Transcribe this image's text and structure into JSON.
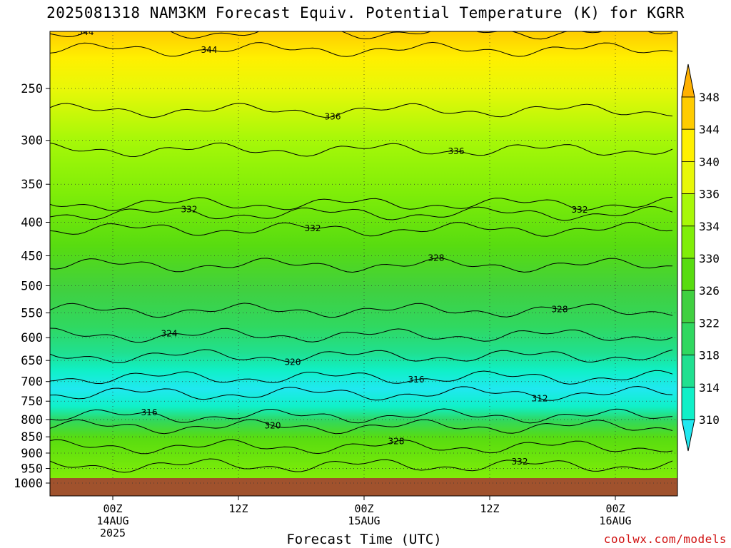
{
  "title": "2025081318 NAM3KM Forecast Equiv. Potential Temperature (K) for KGRR",
  "credit": "coolwx.com/models",
  "chart_data": {
    "type": "contour-time-height",
    "xlabel": "Forecast Time (UTC)",
    "ylabel": "",
    "x_ticks": [
      {
        "label": "00Z",
        "date": "14AUG",
        "year": "2025"
      },
      {
        "label": "12Z",
        "date": "",
        "year": ""
      },
      {
        "label": "00Z",
        "date": "15AUG",
        "year": ""
      },
      {
        "label": "12Z",
        "date": "",
        "year": ""
      },
      {
        "label": "00Z",
        "date": "16AUG",
        "year": ""
      }
    ],
    "y_ticks": [
      "250",
      "300",
      "350",
      "400",
      "450",
      "500",
      "550",
      "600",
      "650",
      "700",
      "750",
      "800",
      "850",
      "900",
      "950",
      "1000"
    ],
    "y_log_scale": true,
    "ylim": [
      200,
      1000
    ],
    "grid": true,
    "colorbar_labels": [
      "310",
      "314",
      "318",
      "322",
      "326",
      "330",
      "334",
      "336",
      "340",
      "344",
      "348"
    ],
    "colorbar_colors": [
      "#20e8f0",
      "#10f0c8",
      "#20e090",
      "#30d860",
      "#40d040",
      "#58dc10",
      "#80ee08",
      "#a8f808",
      "#e8f808",
      "#fff000",
      "#ffcc00",
      "#ffb000"
    ],
    "ground_color": "#a0522d",
    "contour_levels": [
      {
        "label": "344",
        "pressure": 205
      },
      {
        "label": "344",
        "pressure": 218
      },
      {
        "label": "336",
        "pressure": 270
      },
      {
        "label": "336",
        "pressure": 310
      },
      {
        "label": "332",
        "pressure": 375
      },
      {
        "label": "332",
        "pressure": 388
      },
      {
        "label": "332",
        "pressure": 410
      },
      {
        "label": "328",
        "pressure": 465
      },
      {
        "label": "328",
        "pressure": 545
      },
      {
        "label": "324",
        "pressure": 595
      },
      {
        "label": "320",
        "pressure": 640
      },
      {
        "label": "316",
        "pressure": 690
      },
      {
        "label": "312",
        "pressure": 730
      },
      {
        "label": "316",
        "pressure": 790
      },
      {
        "label": "320",
        "pressure": 820
      },
      {
        "label": "328",
        "pressure": 880
      },
      {
        "label": "332",
        "pressure": 940
      }
    ]
  }
}
